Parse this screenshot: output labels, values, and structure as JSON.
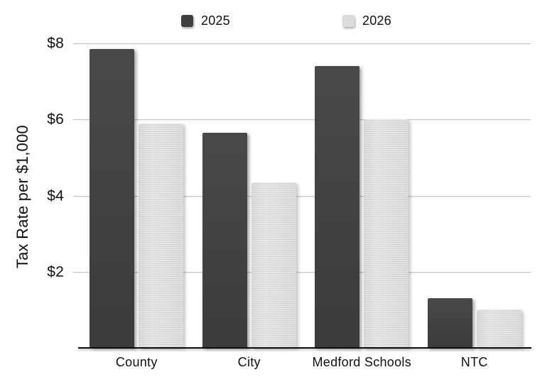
{
  "chart_data": {
    "type": "bar",
    "title": "",
    "ylabel": "Tax Rate per $1,000",
    "xlabel": "",
    "categories": [
      "County",
      "City",
      "Medford Schools",
      "NTC"
    ],
    "series": [
      {
        "name": "2025",
        "color": "#3f3f3f",
        "values": [
          7.85,
          5.65,
          7.4,
          1.3
        ]
      },
      {
        "name": "2026",
        "color": "#dcdcdc",
        "values": [
          5.9,
          4.35,
          6.0,
          1.0
        ]
      }
    ],
    "ylim": [
      0,
      8
    ],
    "yticks": [
      {
        "value": 8,
        "label": "$8"
      },
      {
        "value": 6,
        "label": "$6"
      },
      {
        "value": 4,
        "label": "$4"
      },
      {
        "value": 2,
        "label": "$2"
      }
    ],
    "grid": true,
    "legend_position": "top"
  },
  "colors": {
    "series_2025": "#3f3f3f",
    "series_2026": "#dcdcdc",
    "gridline": "#c4c4c4",
    "axis_line": "#0d0d0d",
    "text": "#111111",
    "background": "#ffffff"
  }
}
